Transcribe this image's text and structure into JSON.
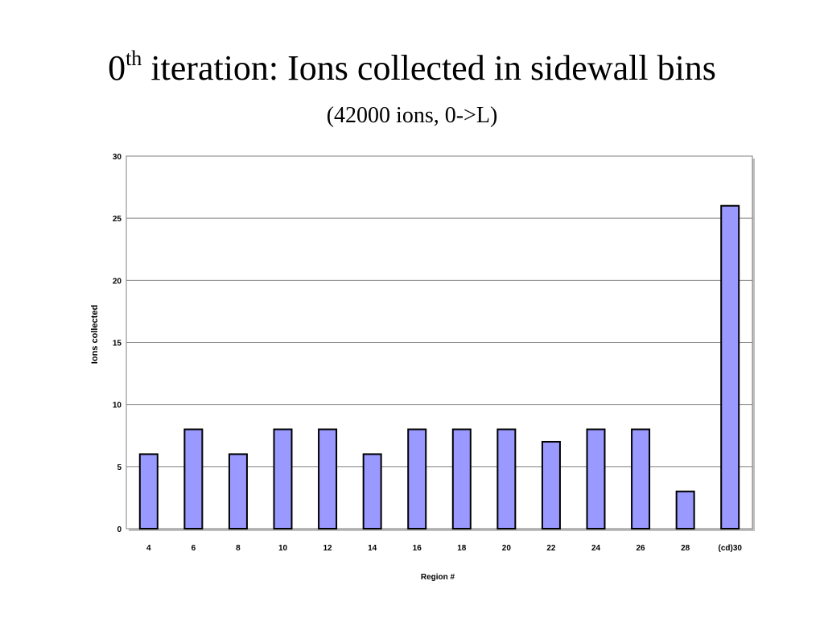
{
  "slide": {
    "title_main": "0",
    "title_sup": "th",
    "title_rest": " iteration: Ions collected in sidewall bins",
    "subtitle": "(42000 ions, 0->L)"
  },
  "chart_data": {
    "type": "bar",
    "categories": [
      "4",
      "6",
      "8",
      "10",
      "12",
      "14",
      "16",
      "18",
      "20",
      "22",
      "24",
      "26",
      "28",
      "(cd)30"
    ],
    "values": [
      6,
      8,
      6,
      8,
      8,
      6,
      8,
      8,
      8,
      7,
      8,
      8,
      3,
      26
    ],
    "xlabel": "Region #",
    "ylabel": "Ions collected",
    "ylim": [
      0,
      30
    ],
    "yticks": [
      0,
      5,
      10,
      15,
      20,
      25,
      30
    ],
    "grid": true,
    "legend": "none",
    "colors": {
      "bar": "#9999ff",
      "bar_stroke": "#000000",
      "grid": "#808080"
    }
  }
}
